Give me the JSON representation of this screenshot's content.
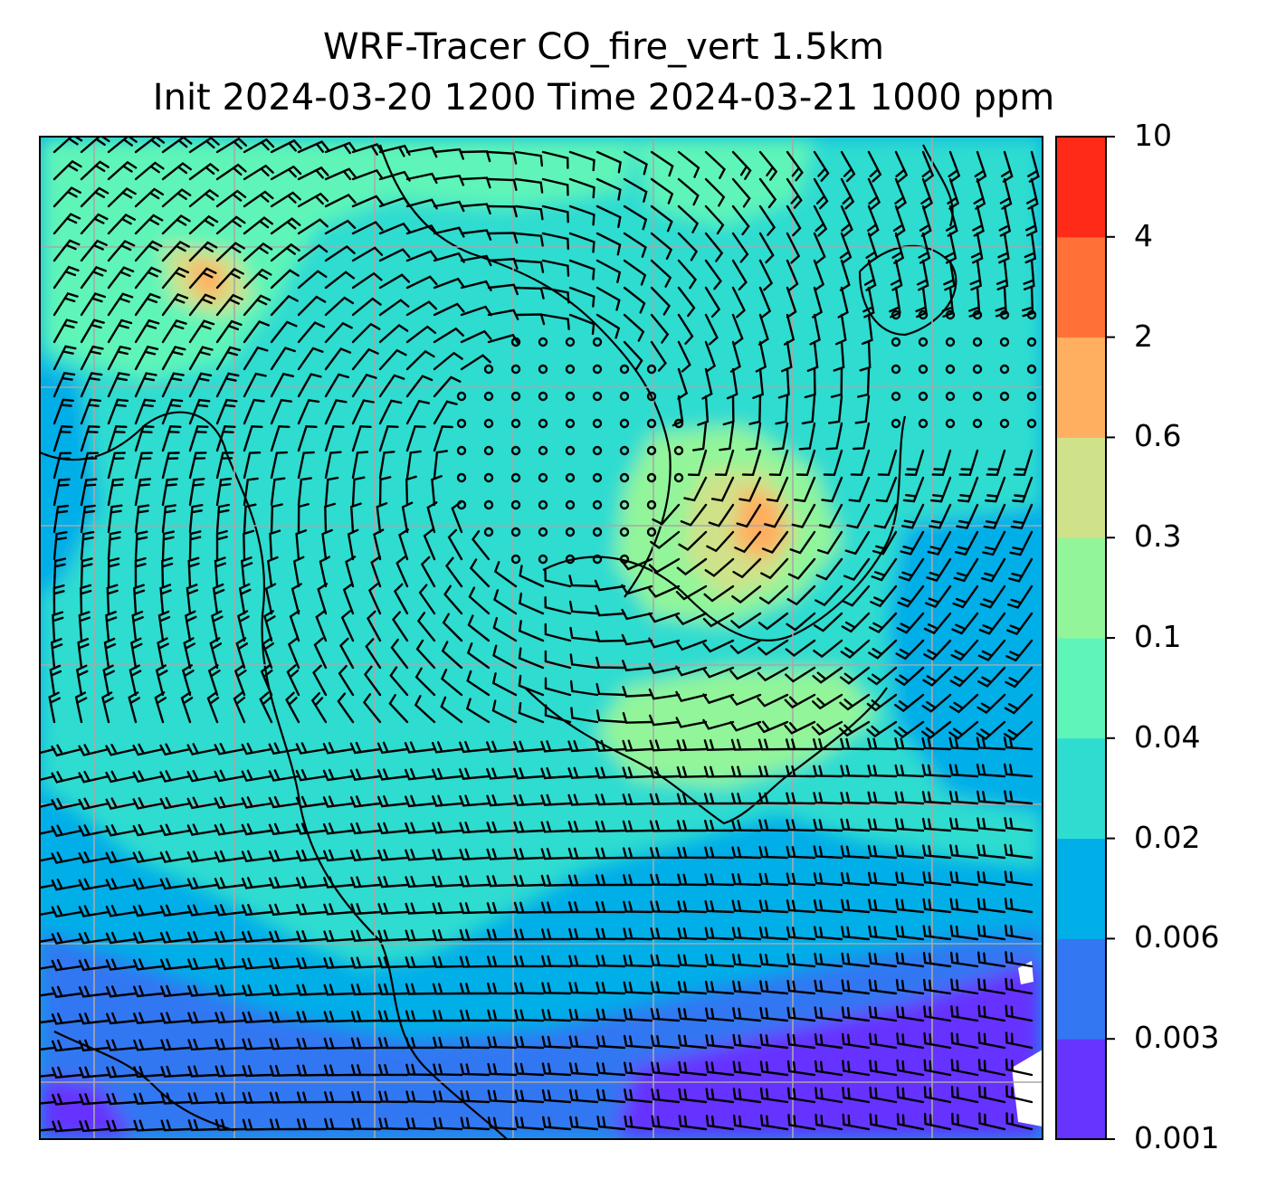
{
  "title": {
    "line1": "WRF-Tracer CO_fire_vert 1.5km",
    "line2": "Init 2024-03-20 1200 Time 2024-03-21 1000 ppm"
  },
  "colorbar": {
    "levels": [
      "0.001",
      "0.003",
      "0.006",
      "0.02",
      "0.04",
      "0.1",
      "0.3",
      "0.6",
      "2",
      "4",
      "10"
    ],
    "colors": [
      "#6633ff",
      "#3377f2",
      "#00aee8",
      "#2fdcd0",
      "#5ff5b8",
      "#92f59a",
      "#cfe28a",
      "#ffaf5f",
      "#ff7136",
      "#ff2b18"
    ]
  },
  "map": {
    "field": "CO_fire_vert",
    "overlay": [
      "wind-barbs",
      "coastlines",
      "lat-lon-grid"
    ],
    "region_colors": {
      "far_south": "#6633ff",
      "south": "#3377f2",
      "background": "#00aee8",
      "mid": "#2fdcd0",
      "north": "#5ff5b8",
      "plume_light": "#92f59a",
      "plume": "#cfe28a",
      "plume_core": "#ffaf5f",
      "hotspot": "#ff7136",
      "missing": "#ffffff"
    }
  }
}
